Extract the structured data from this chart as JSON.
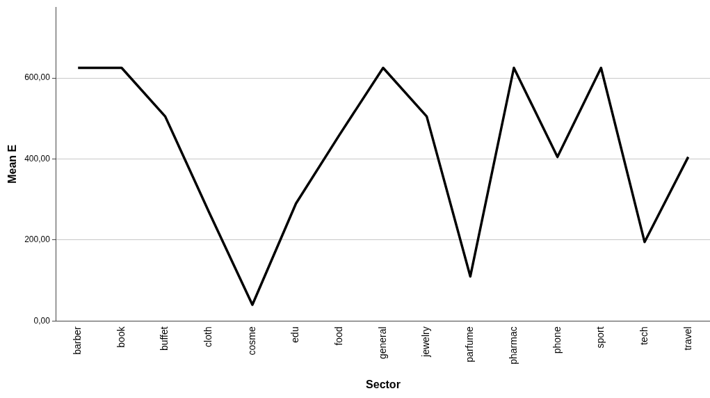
{
  "chart_data": {
    "type": "line",
    "xlabel": "Sector",
    "ylabel": "Mean E",
    "categories": [
      "barber",
      "book",
      "buffet",
      "cloth",
      "cosme",
      "edu",
      "food",
      "general",
      "jewelry",
      "parfume",
      "pharmac",
      "phone",
      "sport",
      "tech",
      "travel"
    ],
    "series": [
      {
        "color": "#000000",
        "values": [
          625,
          625,
          505,
          270,
          40,
          290,
          460,
          625,
          505,
          110,
          625,
          405,
          625,
          195,
          405
        ]
      }
    ],
    "ylim": [
      0,
      775
    ],
    "yticks": [
      {
        "value": 0,
        "label": "0,00"
      },
      {
        "value": 200,
        "label": "200,00"
      },
      {
        "value": 400,
        "label": "400,00"
      },
      {
        "value": 600,
        "label": "600,00"
      }
    ],
    "grid": "y",
    "legend": false,
    "marker": "none",
    "line_style": "solid"
  }
}
